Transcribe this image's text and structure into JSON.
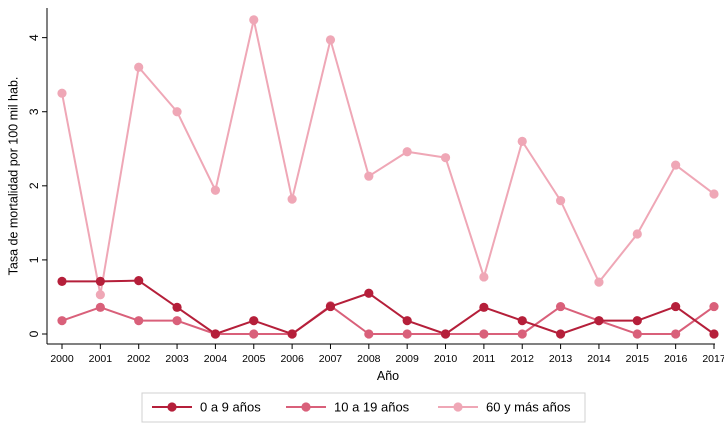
{
  "chart_data": {
    "type": "line",
    "xlabel": "Año",
    "ylabel": "Tasa de mortalidad por 100 mil hab.",
    "x": [
      "2000",
      "2001",
      "2002",
      "2003",
      "2004",
      "2005",
      "2006",
      "2007",
      "2008",
      "2009",
      "2010",
      "2011",
      "2012",
      "2013",
      "2014",
      "2015",
      "2016",
      "2017"
    ],
    "ylim": [
      0,
      4.4
    ],
    "yticks": [
      0,
      1,
      2,
      3,
      4
    ],
    "grid": false,
    "legend_position": "bottom",
    "series": [
      {
        "name": "0 a 9 años",
        "color": "#b51f3a",
        "values": [
          0.71,
          0.71,
          0.72,
          0.36,
          0.0,
          0.18,
          0.0,
          0.37,
          0.55,
          0.18,
          0.0,
          0.36,
          0.18,
          0.0,
          0.18,
          0.18,
          0.37,
          0.0
        ]
      },
      {
        "name": "10 a 19 años",
        "color": "#d9607a",
        "values": [
          0.18,
          0.36,
          0.18,
          0.18,
          0.0,
          0.0,
          0.0,
          0.38,
          0.0,
          0.0,
          0.0,
          0.0,
          0.0,
          0.37,
          0.18,
          0.0,
          0.0,
          0.37
        ]
      },
      {
        "name": "60 y más años",
        "color": "#efa7b6",
        "values": [
          3.25,
          0.53,
          3.6,
          3.0,
          1.94,
          4.24,
          1.82,
          3.97,
          2.13,
          2.46,
          2.38,
          0.77,
          2.6,
          1.8,
          0.7,
          1.35,
          2.28,
          1.89
        ]
      }
    ]
  }
}
